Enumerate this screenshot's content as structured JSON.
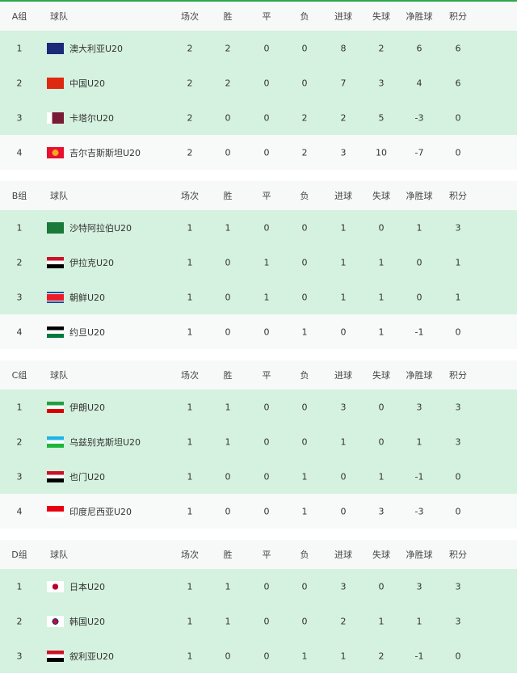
{
  "headers": [
    "球队",
    "场次",
    "胜",
    "平",
    "负",
    "进球",
    "失球",
    "净胜球",
    "积分"
  ],
  "colors": {
    "accent": "#2aa84a",
    "qualified_row": "#d5f1df",
    "other_row": "#f8f9f9"
  },
  "groups": [
    {
      "name": "A组",
      "rows": [
        {
          "rank": "1",
          "team": "澳大利亚U20",
          "flag": "australia-flag",
          "stats": [
            "2",
            "2",
            "0",
            "0",
            "8",
            "2",
            "6",
            "6"
          ]
        },
        {
          "rank": "2",
          "team": "中国U20",
          "flag": "china-flag",
          "stats": [
            "2",
            "2",
            "0",
            "0",
            "7",
            "3",
            "4",
            "6"
          ]
        },
        {
          "rank": "3",
          "team": "卡塔尔U20",
          "flag": "qatar-flag",
          "stats": [
            "2",
            "0",
            "0",
            "2",
            "2",
            "5",
            "-3",
            "0"
          ]
        },
        {
          "rank": "4",
          "team": "吉尔吉斯斯坦U20",
          "flag": "kyrgyzstan-flag",
          "stats": [
            "2",
            "0",
            "0",
            "2",
            "3",
            "10",
            "-7",
            "0"
          ]
        }
      ]
    },
    {
      "name": "B组",
      "rows": [
        {
          "rank": "1",
          "team": "沙特阿拉伯U20",
          "flag": "saudi-arabia-flag",
          "stats": [
            "1",
            "1",
            "0",
            "0",
            "1",
            "0",
            "1",
            "3"
          ]
        },
        {
          "rank": "2",
          "team": "伊拉克U20",
          "flag": "iraq-flag",
          "stats": [
            "1",
            "0",
            "1",
            "0",
            "1",
            "1",
            "0",
            "1"
          ]
        },
        {
          "rank": "3",
          "team": "朝鲜U20",
          "flag": "north-korea-flag",
          "stats": [
            "1",
            "0",
            "1",
            "0",
            "1",
            "1",
            "0",
            "1"
          ]
        },
        {
          "rank": "4",
          "team": "约旦U20",
          "flag": "jordan-flag",
          "stats": [
            "1",
            "0",
            "0",
            "1",
            "0",
            "1",
            "-1",
            "0"
          ]
        }
      ]
    },
    {
      "name": "C组",
      "rows": [
        {
          "rank": "1",
          "team": "伊朗U20",
          "flag": "iran-flag",
          "stats": [
            "1",
            "1",
            "0",
            "0",
            "3",
            "0",
            "3",
            "3"
          ]
        },
        {
          "rank": "2",
          "team": "乌兹别克斯坦U20",
          "flag": "uzbekistan-flag",
          "stats": [
            "1",
            "1",
            "0",
            "0",
            "1",
            "0",
            "1",
            "3"
          ]
        },
        {
          "rank": "3",
          "team": "也门U20",
          "flag": "yemen-flag",
          "stats": [
            "1",
            "0",
            "0",
            "1",
            "0",
            "1",
            "-1",
            "0"
          ]
        },
        {
          "rank": "4",
          "team": "印度尼西亚U20",
          "flag": "indonesia-flag",
          "stats": [
            "1",
            "0",
            "0",
            "1",
            "0",
            "3",
            "-3",
            "0"
          ]
        }
      ]
    },
    {
      "name": "D组",
      "rows": [
        {
          "rank": "1",
          "team": "日本U20",
          "flag": "japan-flag",
          "stats": [
            "1",
            "1",
            "0",
            "0",
            "3",
            "0",
            "3",
            "3"
          ]
        },
        {
          "rank": "2",
          "team": "韩国U20",
          "flag": "south-korea-flag",
          "stats": [
            "1",
            "1",
            "0",
            "0",
            "2",
            "1",
            "1",
            "3"
          ]
        },
        {
          "rank": "3",
          "team": "叙利亚U20",
          "flag": "syria-flag",
          "stats": [
            "1",
            "0",
            "0",
            "1",
            "1",
            "2",
            "-1",
            "0"
          ]
        }
      ]
    }
  ]
}
